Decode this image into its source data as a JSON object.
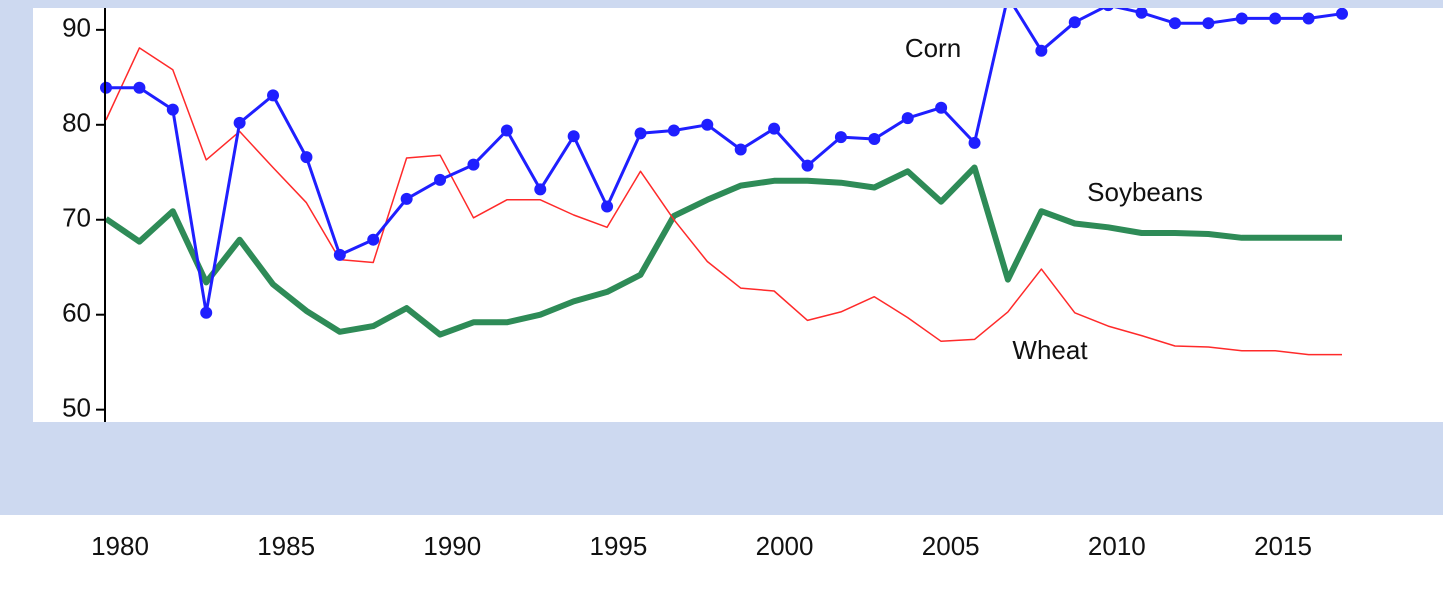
{
  "chart_data": {
    "type": "line",
    "x": [
      1980,
      1981,
      1982,
      1983,
      1984,
      1985,
      1986,
      1987,
      1988,
      1989,
      1990,
      1991,
      1992,
      1993,
      1994,
      1995,
      1996,
      1997,
      1998,
      1999,
      2000,
      2001,
      2002,
      2003,
      2004,
      2005,
      2006,
      2007,
      2008,
      2009,
      2010,
      2011,
      2012,
      2013,
      2014,
      2015,
      2016,
      2017
    ],
    "series": [
      {
        "name": "Corn",
        "color": "#1f1fff",
        "markers": true,
        "values": [
          83.9,
          83.9,
          81.6,
          60.2,
          80.2,
          83.1,
          76.6,
          66.3,
          67.9,
          72.2,
          74.2,
          75.8,
          79.4,
          73.2,
          78.8,
          71.4,
          79.1,
          79.4,
          80.0,
          77.4,
          79.6,
          75.7,
          78.7,
          78.5,
          80.7,
          81.8,
          78.1,
          93.5,
          87.8,
          90.8,
          92.6,
          91.8,
          90.7,
          90.7,
          91.2,
          91.2,
          91.2,
          91.7
        ]
      },
      {
        "name": "Soybeans",
        "color": "#2e8b57",
        "markers": false,
        "values": [
          70.1,
          67.7,
          70.9,
          63.4,
          67.9,
          63.2,
          60.4,
          58.2,
          58.8,
          60.7,
          57.9,
          59.2,
          59.2,
          60.0,
          61.4,
          62.4,
          64.2,
          70.4,
          72.1,
          73.6,
          74.1,
          74.1,
          73.9,
          73.4,
          75.1,
          71.9,
          75.5,
          63.7,
          70.9,
          69.6,
          69.2,
          68.6,
          68.6,
          68.5,
          68.1,
          68.1,
          68.1,
          68.1
        ]
      },
      {
        "name": "Wheat",
        "color": "#ff2a2a",
        "markers": false,
        "values": [
          80.5,
          88.1,
          85.8,
          76.3,
          79.3,
          75.5,
          71.8,
          65.8,
          65.5,
          76.5,
          76.8,
          70.2,
          72.1,
          72.1,
          70.5,
          69.2,
          75.1,
          70.0,
          65.6,
          62.8,
          62.5,
          59.4,
          60.3,
          61.9,
          59.7,
          57.2,
          57.4,
          60.3,
          64.8,
          60.2,
          58.8,
          57.8,
          56.7,
          56.6,
          56.2,
          56.2,
          55.8,
          55.8
        ]
      }
    ],
    "xlim": [
      1980,
      2017
    ],
    "xticks": [
      1980,
      1985,
      1990,
      1995,
      2000,
      2005,
      2010,
      2015
    ],
    "ylim": [
      48.7,
      92.3
    ],
    "yticks": [
      50,
      60,
      70,
      80,
      90
    ]
  }
}
